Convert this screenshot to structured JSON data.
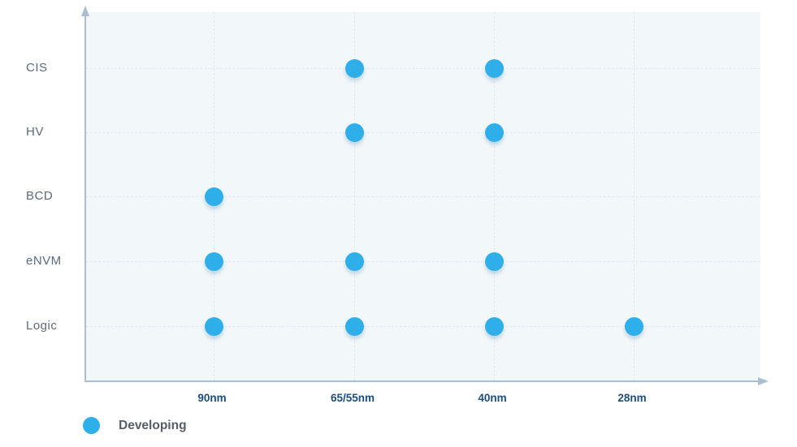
{
  "chart_data": {
    "type": "scatter",
    "title": "",
    "x_categories": [
      "90nm",
      "65/55nm",
      "40nm",
      "28nm"
    ],
    "y_categories": [
      "CIS",
      "HV",
      "BCD",
      "eNVM",
      "Logic"
    ],
    "series": [
      {
        "name": "Developing",
        "color": "#2fafe9",
        "points": [
          {
            "x": "65/55nm",
            "y": "CIS"
          },
          {
            "x": "40nm",
            "y": "CIS"
          },
          {
            "x": "65/55nm",
            "y": "HV"
          },
          {
            "x": "40nm",
            "y": "HV"
          },
          {
            "x": "90nm",
            "y": "BCD"
          },
          {
            "x": "90nm",
            "y": "eNVM"
          },
          {
            "x": "65/55nm",
            "y": "eNVM"
          },
          {
            "x": "40nm",
            "y": "eNVM"
          },
          {
            "x": "90nm",
            "y": "Logic"
          },
          {
            "x": "65/55nm",
            "y": "Logic"
          },
          {
            "x": "40nm",
            "y": "Logic"
          },
          {
            "x": "28nm",
            "y": "Logic"
          }
        ]
      }
    ],
    "legend": {
      "position": "bottom-left",
      "items": [
        {
          "label": "Developing",
          "color": "#2fafe9"
        }
      ]
    },
    "grid": true,
    "axis_arrows": true
  },
  "colors": {
    "plot_background": "#f2f7fa",
    "gridline": "#dfeaf1",
    "axis": "#a9bed0",
    "point": "#2fafe9",
    "y_label": "#5d6a75",
    "x_label": "#1d4e79",
    "legend_text": "#565f68"
  }
}
